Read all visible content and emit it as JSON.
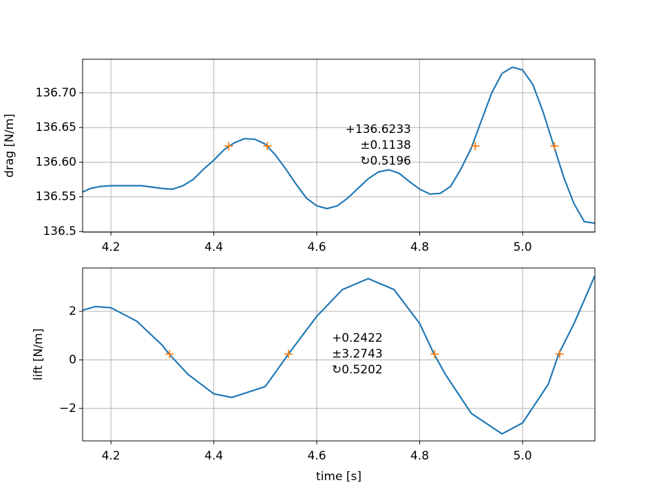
{
  "chart_data": [
    {
      "type": "line",
      "ylabel": "drag [N/m]",
      "x": [
        4.145,
        4.16,
        4.18,
        4.2,
        4.22,
        4.24,
        4.26,
        4.28,
        4.3,
        4.32,
        4.34,
        4.36,
        4.38,
        4.4,
        4.42,
        4.44,
        4.46,
        4.48,
        4.5,
        4.52,
        4.54,
        4.56,
        4.58,
        4.6,
        4.62,
        4.64,
        4.66,
        4.68,
        4.7,
        4.72,
        4.74,
        4.76,
        4.78,
        4.8,
        4.82,
        4.84,
        4.86,
        4.88,
        4.9,
        4.92,
        4.94,
        4.96,
        4.98,
        5.0,
        5.02,
        5.04,
        5.06,
        5.08,
        5.1,
        5.12,
        5.14
      ],
      "series": [
        {
          "color": "#1f77b4",
          "values": [
            136.557,
            136.562,
            136.565,
            136.566,
            136.566,
            136.566,
            136.566,
            136.564,
            136.562,
            136.561,
            136.566,
            136.575,
            136.59,
            136.603,
            136.618,
            136.628,
            136.634,
            136.633,
            136.626,
            136.61,
            136.59,
            136.568,
            136.548,
            136.537,
            136.533,
            136.537,
            136.548,
            136.562,
            136.576,
            136.586,
            136.589,
            136.584,
            136.572,
            136.561,
            136.554,
            136.555,
            136.565,
            136.59,
            136.62,
            136.66,
            136.7,
            136.728,
            136.737,
            136.733,
            136.712,
            136.672,
            136.625,
            136.578,
            136.54,
            136.514,
            136.512
          ]
        }
      ],
      "points": {
        "color": "#ff7f0e",
        "x": [
          4.429,
          4.504,
          4.908,
          5.062
        ],
        "values": [
          136.6233,
          136.6233,
          136.6233,
          136.6233
        ]
      },
      "annotation": [
        "+136.6233",
        "±0.1138",
        "↻0.5196"
      ],
      "xlim": [
        4.145,
        5.1405
      ],
      "xticks": [
        4.2,
        4.4,
        4.6,
        4.8,
        {
          "value": 5,
          "label": "5.0"
        }
      ],
      "ylim": [
        136.499,
        136.7485
      ],
      "yticks": [
        136.5,
        136.55,
        {
          "value": 136.6,
          "label": "136.60"
        },
        136.65,
        {
          "value": 136.7,
          "label": "136.70"
        }
      ],
      "grid": true
    },
    {
      "type": "line",
      "ylabel": "lift [N/m]",
      "xlabel": "time [s]",
      "x": [
        4.145,
        4.17,
        4.2,
        4.25,
        4.3,
        4.313,
        4.35,
        4.4,
        4.435,
        4.5,
        4.545,
        4.6,
        4.65,
        4.7,
        4.75,
        4.8,
        4.828,
        4.85,
        4.9,
        4.96,
        5.0,
        5.05,
        5.07,
        5.1,
        5.14
      ],
      "series": [
        {
          "color": "#1f77b4",
          "values": [
            2.05,
            2.2,
            2.15,
            1.6,
            0.6,
            0.24,
            -0.6,
            -1.4,
            -1.55,
            -1.1,
            0.24,
            1.8,
            2.9,
            3.35,
            2.9,
            1.5,
            0.24,
            -0.6,
            -2.2,
            -3.05,
            -2.6,
            -1.0,
            0.24,
            1.5,
            3.45
          ]
        }
      ],
      "points": {
        "color": "#ff7f0e",
        "x": [
          4.314,
          4.545,
          4.829,
          5.072
        ],
        "values": [
          0.2422,
          0.2422,
          0.2422,
          0.2422
        ]
      },
      "annotation": [
        "+0.2422",
        "±3.2743",
        "↻0.5202"
      ],
      "xlim": [
        4.145,
        5.1405
      ],
      "xticks": [
        4.2,
        4.4,
        4.6,
        4.8,
        {
          "value": 5,
          "label": "5.0"
        }
      ],
      "ylim": [
        -3.34,
        3.79
      ],
      "yticks": [
        {
          "value": -2,
          "label": "−2"
        },
        0,
        2
      ],
      "grid": true
    }
  ]
}
